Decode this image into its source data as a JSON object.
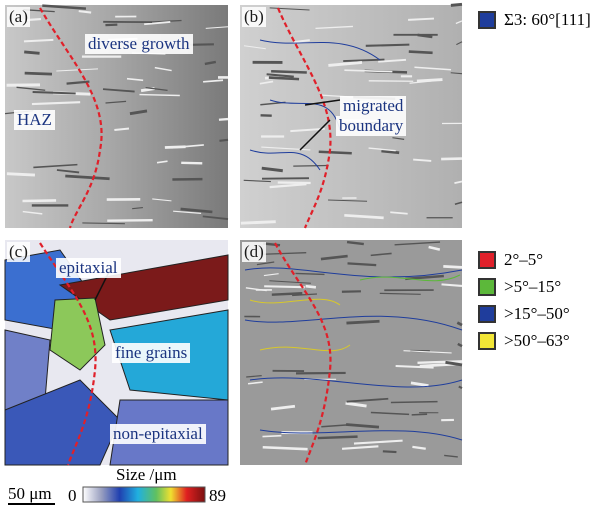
{
  "panels": [
    {
      "label": "(a)",
      "annotations": [
        "diverse growth",
        "HAZ"
      ]
    },
    {
      "label": "(b)",
      "annotations": [
        "migrated",
        "boundary"
      ]
    },
    {
      "label": "(c)",
      "annotations": [
        "epitaxial",
        "fine grains",
        "non-epitaxial"
      ]
    },
    {
      "label": "(d)"
    }
  ],
  "legend_top": [
    {
      "label": "Σ3: 60°[111]",
      "color": "#1f3d9c"
    }
  ],
  "legend_bottom": [
    {
      "label": "2°–5°",
      "color": "#e0202a"
    },
    {
      "label": ">5°–15°",
      "color": "#5cb83a"
    },
    {
      "label": ">15°–50°",
      "color": "#1f3d9c"
    },
    {
      "label": ">50°–63°",
      "color": "#f2e636"
    }
  ],
  "colorbar": {
    "title": "Size /μm",
    "min": 0,
    "max": 89
  },
  "scale_bar": "50 μm"
}
